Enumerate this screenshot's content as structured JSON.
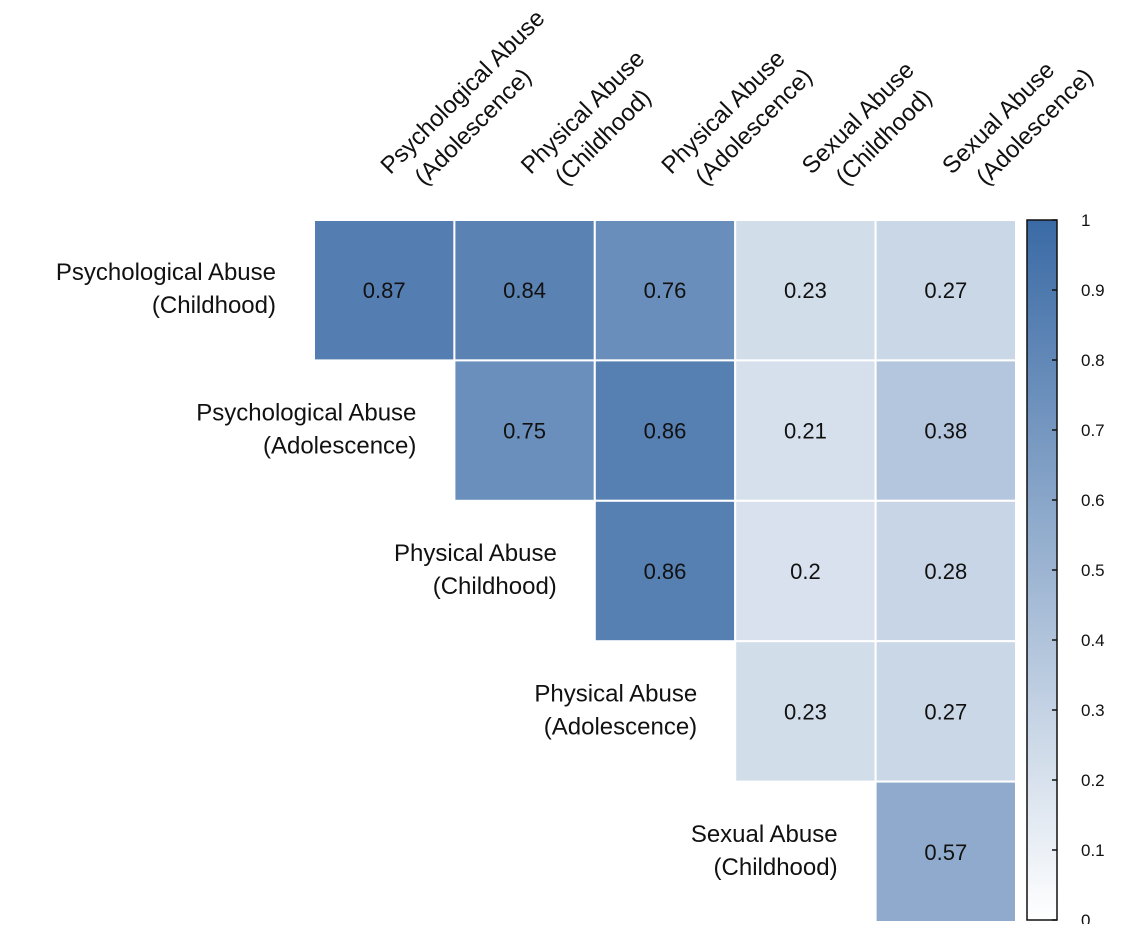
{
  "chart_data": {
    "type": "heatmap",
    "row_labels": [
      [
        "Psychological Abuse",
        "(Childhood)"
      ],
      [
        "Psychological Abuse",
        "(Adolescence)"
      ],
      [
        "Physical Abuse",
        "(Childhood)"
      ],
      [
        "Physical Abuse",
        "(Adolescence)"
      ],
      [
        "Sexual Abuse",
        "(Childhood)"
      ]
    ],
    "column_labels": [
      [
        "Psychological Abuse",
        "(Adolescence)"
      ],
      [
        "Physical Abuse",
        "(Childhood)"
      ],
      [
        "Physical Abuse",
        "(Adolescence)"
      ],
      [
        "Sexual Abuse",
        "(Childhood)"
      ],
      [
        "Sexual Abuse",
        "(Adolescence)"
      ]
    ],
    "cells": [
      {
        "row": 0,
        "col": 0,
        "value": 0.87,
        "label": "0.87"
      },
      {
        "row": 0,
        "col": 1,
        "value": 0.84,
        "label": "0.84"
      },
      {
        "row": 0,
        "col": 2,
        "value": 0.76,
        "label": "0.76"
      },
      {
        "row": 0,
        "col": 3,
        "value": 0.23,
        "label": "0.23"
      },
      {
        "row": 0,
        "col": 4,
        "value": 0.27,
        "label": "0.27"
      },
      {
        "row": 1,
        "col": 1,
        "value": 0.75,
        "label": "0.75"
      },
      {
        "row": 1,
        "col": 2,
        "value": 0.86,
        "label": "0.86"
      },
      {
        "row": 1,
        "col": 3,
        "value": 0.21,
        "label": "0.21"
      },
      {
        "row": 1,
        "col": 4,
        "value": 0.38,
        "label": "0.38"
      },
      {
        "row": 2,
        "col": 2,
        "value": 0.86,
        "label": "0.86"
      },
      {
        "row": 2,
        "col": 3,
        "value": 0.2,
        "label": "0.2"
      },
      {
        "row": 2,
        "col": 4,
        "value": 0.28,
        "label": "0.28"
      },
      {
        "row": 3,
        "col": 3,
        "value": 0.23,
        "label": "0.23"
      },
      {
        "row": 3,
        "col": 4,
        "value": 0.27,
        "label": "0.27"
      },
      {
        "row": 4,
        "col": 4,
        "value": 0.57,
        "label": "0.57"
      }
    ],
    "colorbar": {
      "range": [
        0,
        1
      ],
      "ticks": [
        "0",
        "0.1",
        "0.2",
        "0.3",
        "0.4",
        "0.5",
        "0.6",
        "0.7",
        "0.8",
        "0.9",
        "1"
      ],
      "color_low": "#ffffff",
      "color_high": "#3a6aa5"
    },
    "colors": {
      "cell_border": "#ffffff",
      "text": "#111111"
    }
  }
}
